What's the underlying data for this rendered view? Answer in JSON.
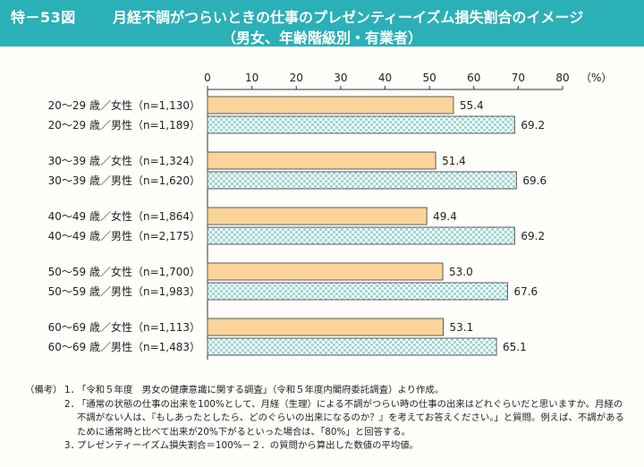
{
  "header": {
    "code": "特－53図",
    "title_line1": "月経不調がつらいときの仕事のプレゼンティーイズム損失割合のイメージ",
    "title_line2": "（男女、年齢階級別・有業者）"
  },
  "chart_data": {
    "type": "bar",
    "orientation": "horizontal",
    "unit": "（%）",
    "xlim": [
      0,
      80
    ],
    "ticks": [
      0,
      10,
      20,
      30,
      40,
      50,
      60,
      70,
      80
    ],
    "tick_labels": [
      "0",
      "10",
      "20",
      "30",
      "40",
      "50",
      "60",
      "70",
      "80"
    ],
    "groups": [
      {
        "female": {
          "label": "20～29 歳／女性（n=1,130）",
          "value": 55.4,
          "value_label": "55.4"
        },
        "male": {
          "label": "20～29 歳／男性（n=1,189）",
          "value": 69.2,
          "value_label": "69.2"
        }
      },
      {
        "female": {
          "label": "30～39 歳／女性（n=1,324）",
          "value": 51.4,
          "value_label": "51.4"
        },
        "male": {
          "label": "30～39 歳／男性（n=1,620）",
          "value": 69.6,
          "value_label": "69.6"
        }
      },
      {
        "female": {
          "label": "40～49 歳／女性（n=1,864）",
          "value": 49.4,
          "value_label": "49.4"
        },
        "male": {
          "label": "40～49 歳／男性（n=2,175）",
          "value": 69.2,
          "value_label": "69.2"
        }
      },
      {
        "female": {
          "label": "50～59 歳／女性（n=1,700）",
          "value": 53.0,
          "value_label": "53.0"
        },
        "male": {
          "label": "50～59 歳／男性（n=1,983）",
          "value": 67.6,
          "value_label": "67.6"
        }
      },
      {
        "female": {
          "label": "60～69 歳／女性（n=1,113）",
          "value": 53.1,
          "value_label": "53.1"
        },
        "male": {
          "label": "60～69 歳／男性（n=1,483）",
          "value": 65.1,
          "value_label": "65.1"
        }
      }
    ],
    "colors": {
      "female_fill": "#fcd49a",
      "female_stroke": "#5a5a5a",
      "male_check_a": "#9fd7d3",
      "male_check_b": "#ffffff",
      "male_stroke": "#5a5a5a",
      "axis": "#333333"
    }
  },
  "notes": {
    "tag": "（備考）",
    "items": [
      {
        "num": "1．",
        "text": "「令和５年度　男女の健康意識に関する調査」（令和５年度内閣府委託調査）より作成。"
      },
      {
        "num": "2．",
        "text": "「通常の状態の仕事の出来を100%として、月経（生理）による不調がつらい時の仕事の出来はどれぐらいだと思いますか。月経の不調がない人は、『もしあったとしたら、どのぐらいの出来になるのか？』を考えてお答えください。」と質問。例えば、不調があるために通常時と比べて出来が20%下がるといった場合は、「80%」と回答する。"
      },
      {
        "num": "3．",
        "text": "プレゼンティーイズム損失割合＝100%－２．の質問から算出した数値の平均値。"
      }
    ]
  }
}
